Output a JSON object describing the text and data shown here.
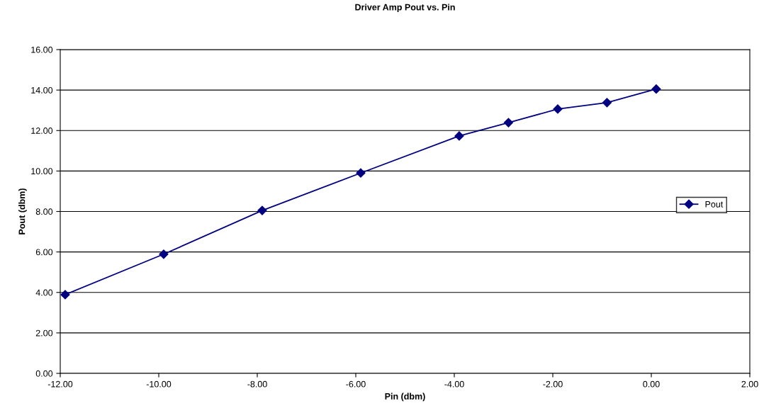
{
  "chart_data": {
    "type": "line",
    "title": "Driver Amp Pout vs. Pin",
    "xlabel": "Pin (dbm)",
    "ylabel": "Pout (dbm)",
    "x": [
      -11.9,
      -9.9,
      -7.9,
      -5.9,
      -3.9,
      -2.9,
      -1.9,
      -0.9,
      0.1
    ],
    "series": [
      {
        "name": "Pout",
        "color": "#000080",
        "values": [
          3.89,
          5.89,
          8.05,
          9.9,
          11.73,
          12.39,
          13.06,
          13.38,
          14.05
        ]
      }
    ],
    "xlim": [
      -12,
      2
    ],
    "xticks": [
      {
        "value": -12,
        "label": "-12.00"
      },
      {
        "value": -10,
        "label": "-10.00"
      },
      {
        "value": -8,
        "label": "-8.00"
      },
      {
        "value": -6,
        "label": "-6.00"
      },
      {
        "value": -4,
        "label": "-4.00"
      },
      {
        "value": -2,
        "label": "-2.00"
      },
      {
        "value": 0,
        "label": "0.00"
      },
      {
        "value": 2,
        "label": "2.00"
      }
    ],
    "ylim": [
      0,
      16
    ],
    "yticks": [
      {
        "value": 0,
        "label": "0.00"
      },
      {
        "value": 2,
        "label": "2.00"
      },
      {
        "value": 4,
        "label": "4.00"
      },
      {
        "value": 6,
        "label": "6.00"
      },
      {
        "value": 8,
        "label": "8.00"
      },
      {
        "value": 10,
        "label": "10.00"
      },
      {
        "value": 12,
        "label": "12.00"
      },
      {
        "value": 14,
        "label": "14.00"
      },
      {
        "value": 16,
        "label": "16.00"
      }
    ],
    "grid": "y",
    "legend": "right",
    "marker": "diamond",
    "line_style": "solid"
  }
}
